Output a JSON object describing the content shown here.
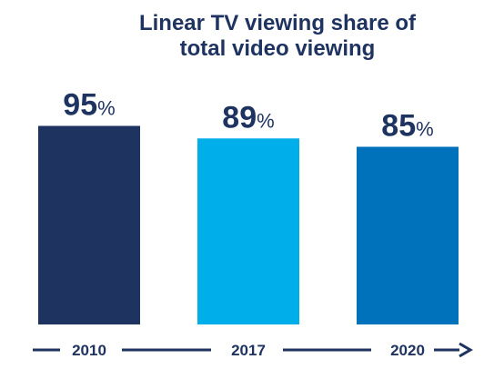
{
  "chart_data": {
    "type": "bar",
    "title_lines": [
      "Linear TV viewing share of",
      "total video viewing"
    ],
    "categories": [
      "2010",
      "2017",
      "2020"
    ],
    "values": [
      95,
      89,
      85
    ],
    "value_suffix": "%",
    "ylim": [
      0,
      100
    ],
    "grid": false,
    "legend": "none",
    "bar_colors": [
      "#1f3361",
      "#00aeea",
      "#0072bb"
    ],
    "text_color": "#1f3361",
    "axis_arrow": true
  }
}
